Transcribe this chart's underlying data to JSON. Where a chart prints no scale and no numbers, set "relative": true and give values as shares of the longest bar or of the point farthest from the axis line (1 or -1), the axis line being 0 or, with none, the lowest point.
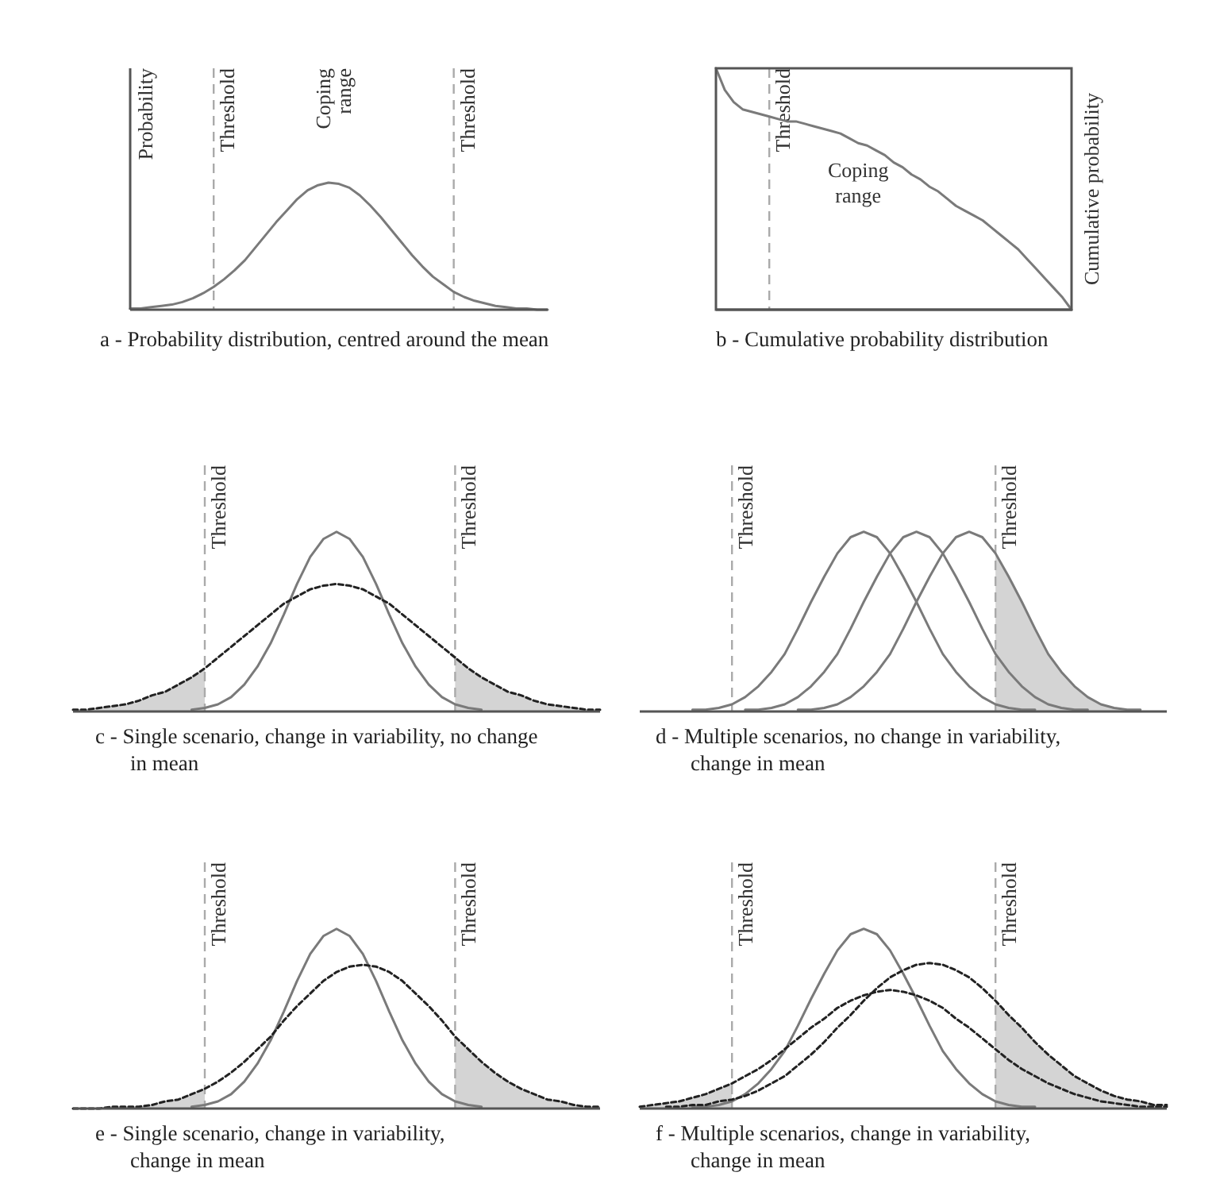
{
  "chart_data": [
    {
      "type": "line",
      "title": "a - Probability distribution, centred around the mean",
      "ylabel": "Probability",
      "annotations": [
        "Coping\nrange"
      ],
      "relative": true,
      "categories": [
        null,
        null,
        null,
        null,
        null,
        null,
        null,
        null,
        null,
        null,
        null,
        null,
        null,
        null,
        null,
        null,
        null,
        null,
        null,
        null,
        null,
        null,
        null,
        null,
        null,
        null,
        null,
        null,
        null,
        null,
        null,
        null,
        null,
        null,
        null,
        null,
        null,
        null,
        null,
        null,
        null
      ],
      "ref_lines": [
        {
          "axis": "x",
          "label": "Threshold",
          "color": "#aaaaaa",
          "line_style": "dashed"
        },
        {
          "axis": "x",
          "label": "Threshold",
          "color": "#aaaaaa",
          "line_style": "dashed"
        }
      ],
      "series": [
        {
          "type": "line",
          "color": "#7a7a7a",
          "line_style": "solid",
          "values": [
            0.01,
            0.01,
            0.02,
            0.03,
            0.04,
            0.06,
            0.09,
            0.13,
            0.18,
            0.24,
            0.31,
            0.39,
            0.49,
            0.59,
            0.69,
            0.78,
            0.87,
            0.94,
            0.98,
            1,
            0.99,
            0.96,
            0.9,
            0.82,
            0.73,
            0.63,
            0.53,
            0.43,
            0.34,
            0.26,
            0.2,
            0.14,
            0.1,
            0.07,
            0.05,
            0.03,
            0.02,
            0.01,
            0.01,
            0,
            0
          ]
        }
      ]
    },
    {
      "type": "line",
      "title": "b - Cumulative probability distribution",
      "y2label": "Cumulative probability",
      "annotations": [
        "Coping\nrange"
      ],
      "relative": true,
      "categories": [
        null,
        null,
        null,
        null,
        null,
        null,
        null,
        null,
        null,
        null,
        null,
        null,
        null,
        null,
        null,
        null,
        null,
        null,
        null,
        null,
        null,
        null,
        null,
        null,
        null,
        null,
        null,
        null,
        null,
        null,
        null,
        null,
        null,
        null,
        null,
        null,
        null,
        null,
        null,
        null,
        null
      ],
      "ref_lines": [
        {
          "axis": "x",
          "label": "Threshold",
          "color": "#aaaaaa",
          "line_style": "dashed"
        }
      ],
      "series": [
        {
          "type": "line",
          "color": "#7a7a7a",
          "line_style": "solid",
          "values": [
            1,
            0.91,
            0.86,
            0.83,
            0.82,
            0.81,
            0.8,
            0.79,
            0.78,
            0.78,
            0.77,
            0.76,
            0.75,
            0.74,
            0.73,
            0.71,
            0.69,
            0.68,
            0.66,
            0.64,
            0.61,
            0.59,
            0.56,
            0.54,
            0.51,
            0.49,
            0.46,
            0.43,
            0.41,
            0.39,
            0.37,
            0.34,
            0.31,
            0.28,
            0.25,
            0.21,
            0.17,
            0.13,
            0.09,
            0.05,
            0
          ]
        }
      ]
    },
    {
      "type": "line",
      "title": "c - Single scenario, change in variability, no change\nin mean",
      "relative": true,
      "categories": [
        null,
        null,
        null,
        null,
        null,
        null,
        null,
        null,
        null,
        null,
        null,
        null,
        null,
        null,
        null,
        null,
        null,
        null,
        null,
        null,
        null,
        null,
        null,
        null,
        null,
        null,
        null,
        null,
        null,
        null,
        null,
        null,
        null,
        null,
        null,
        null,
        null,
        null,
        null,
        null,
        null
      ],
      "ref_lines": [
        {
          "axis": "x",
          "label": "Threshold",
          "color": "#aaaaaa",
          "line_style": "dashed"
        },
        {
          "axis": "x",
          "label": "Threshold",
          "color": "#aaaaaa",
          "line_style": "dashed"
        }
      ],
      "series": [
        {
          "type": "area",
          "color": "#d4d4d4",
          "values": [
            0.01,
            0.01,
            0.02,
            0.03,
            0.04,
            0.06,
            0.09,
            0.11,
            0.15,
            0.19,
            0.24,
            null,
            null,
            null,
            null,
            null,
            null,
            null,
            null,
            null,
            null,
            null,
            null,
            null,
            null,
            null,
            null,
            null,
            null,
            null,
            null,
            null,
            null,
            null,
            null,
            null,
            null,
            null,
            null,
            null,
            null
          ]
        },
        {
          "type": "area",
          "color": "#d4d4d4",
          "values": [
            null,
            null,
            null,
            null,
            null,
            null,
            null,
            null,
            null,
            null,
            null,
            null,
            null,
            null,
            null,
            null,
            null,
            null,
            null,
            null,
            null,
            null,
            null,
            null,
            null,
            null,
            null,
            null,
            null,
            0.3,
            0.24,
            0.19,
            0.15,
            0.11,
            0.09,
            0.06,
            0.04,
            0.03,
            0.02,
            0.01,
            0.01
          ]
        },
        {
          "type": "line",
          "color": "#7a7a7a",
          "line_style": "solid",
          "values": [
            null,
            null,
            null,
            null,
            null,
            null,
            null,
            null,
            null,
            0.01,
            0.02,
            0.04,
            0.08,
            0.15,
            0.25,
            0.38,
            0.54,
            0.71,
            0.86,
            0.96,
            1,
            0.96,
            0.86,
            0.71,
            0.54,
            0.38,
            0.25,
            0.15,
            0.08,
            0.04,
            0.02,
            0.01,
            null,
            null,
            null,
            null,
            null,
            null,
            null,
            null,
            null
          ]
        },
        {
          "type": "line",
          "color": "#222222",
          "line_style": "dotted",
          "values": [
            0.01,
            0.01,
            0.02,
            0.03,
            0.04,
            0.06,
            0.09,
            0.11,
            0.15,
            0.19,
            0.24,
            0.3,
            0.36,
            0.42,
            0.48,
            0.54,
            0.6,
            0.64,
            0.68,
            0.7,
            0.71,
            0.7,
            0.68,
            0.64,
            0.6,
            0.54,
            0.48,
            0.42,
            0.36,
            0.3,
            0.24,
            0.19,
            0.15,
            0.11,
            0.09,
            0.06,
            0.04,
            0.03,
            0.02,
            0.01,
            0.01
          ]
        }
      ]
    },
    {
      "type": "line",
      "title": "d - Multiple scenarios, no change in variability,\nchange in mean",
      "relative": true,
      "categories": [
        null,
        null,
        null,
        null,
        null,
        null,
        null,
        null,
        null,
        null,
        null,
        null,
        null,
        null,
        null,
        null,
        null,
        null,
        null,
        null,
        null,
        null,
        null,
        null,
        null,
        null,
        null,
        null,
        null,
        null,
        null,
        null,
        null,
        null,
        null,
        null,
        null,
        null,
        null,
        null,
        null
      ],
      "ref_lines": [
        {
          "axis": "x",
          "label": "Threshold",
          "color": "#aaaaaa",
          "line_style": "dashed"
        },
        {
          "axis": "x",
          "label": "Threshold",
          "color": "#aaaaaa",
          "line_style": "dashed"
        }
      ],
      "series": [
        {
          "type": "area",
          "color": "#d4d4d4",
          "values": [
            null,
            null,
            null,
            null,
            null,
            null,
            null,
            null,
            null,
            null,
            null,
            null,
            null,
            null,
            null,
            null,
            null,
            null,
            null,
            null,
            null,
            null,
            null,
            null,
            null,
            null,
            null,
            0.88,
            0.75,
            0.61,
            0.46,
            0.32,
            0.22,
            0.14,
            0.08,
            0.04,
            0.02,
            0.01,
            0.01,
            null,
            null
          ]
        },
        {
          "type": "line",
          "color": "#7a7a7a",
          "line_style": "solid",
          "values": [
            null,
            null,
            null,
            null,
            0.01,
            0.01,
            0.02,
            0.04,
            0.08,
            0.14,
            0.22,
            0.32,
            0.46,
            0.61,
            0.75,
            0.88,
            0.97,
            1,
            0.97,
            0.88,
            0.75,
            0.61,
            0.46,
            0.32,
            0.22,
            0.14,
            0.08,
            0.04,
            0.02,
            0.01,
            0.01,
            null,
            null,
            null,
            null,
            null,
            null,
            null,
            null,
            null,
            null
          ]
        },
        {
          "type": "line",
          "color": "#7a7a7a",
          "line_style": "solid",
          "values": [
            null,
            null,
            null,
            null,
            null,
            null,
            null,
            null,
            0.01,
            0.01,
            0.02,
            0.04,
            0.08,
            0.14,
            0.22,
            0.32,
            0.46,
            0.61,
            0.75,
            0.88,
            0.97,
            1,
            0.97,
            0.88,
            0.75,
            0.61,
            0.46,
            0.32,
            0.22,
            0.14,
            0.08,
            0.04,
            0.02,
            0.01,
            0.01,
            null,
            null,
            null,
            null,
            null,
            null
          ]
        },
        {
          "type": "line",
          "color": "#7a7a7a",
          "line_style": "solid",
          "values": [
            null,
            null,
            null,
            null,
            null,
            null,
            null,
            null,
            null,
            null,
            null,
            null,
            0.01,
            0.01,
            0.02,
            0.04,
            0.08,
            0.14,
            0.22,
            0.32,
            0.46,
            0.61,
            0.75,
            0.88,
            0.97,
            1,
            0.97,
            0.88,
            0.75,
            0.61,
            0.46,
            0.32,
            0.22,
            0.14,
            0.08,
            0.04,
            0.02,
            0.01,
            0.01,
            null,
            null
          ]
        }
      ]
    },
    {
      "type": "line",
      "title": "e - Single scenario, change in variability,\nchange in mean",
      "relative": true,
      "categories": [
        null,
        null,
        null,
        null,
        null,
        null,
        null,
        null,
        null,
        null,
        null,
        null,
        null,
        null,
        null,
        null,
        null,
        null,
        null,
        null,
        null,
        null,
        null,
        null,
        null,
        null,
        null,
        null,
        null,
        null,
        null,
        null,
        null,
        null,
        null,
        null,
        null,
        null,
        null,
        null,
        null
      ],
      "ref_lines": [
        {
          "axis": "x",
          "label": "Threshold",
          "color": "#aaaaaa",
          "line_style": "dashed"
        },
        {
          "axis": "x",
          "label": "Threshold",
          "color": "#aaaaaa",
          "line_style": "dashed"
        }
      ],
      "series": [
        {
          "type": "area",
          "color": "#d4d4d4",
          "values": [
            0,
            0,
            0,
            0.01,
            0.01,
            0.01,
            0.02,
            0.04,
            0.05,
            0.08,
            0.11,
            null,
            null,
            null,
            null,
            null,
            null,
            null,
            null,
            null,
            null,
            null,
            null,
            null,
            null,
            null,
            null,
            null,
            null,
            null,
            null,
            null,
            null,
            null,
            null,
            null,
            null,
            null,
            null,
            null,
            null
          ]
        },
        {
          "type": "area",
          "color": "#d4d4d4",
          "values": [
            null,
            null,
            null,
            null,
            null,
            null,
            null,
            null,
            null,
            null,
            null,
            null,
            null,
            null,
            null,
            null,
            null,
            null,
            null,
            null,
            null,
            null,
            null,
            null,
            null,
            null,
            null,
            null,
            null,
            0.4,
            0.33,
            0.26,
            0.2,
            0.15,
            0.11,
            0.08,
            0.05,
            0.04,
            0.02,
            0.01,
            0.01
          ]
        },
        {
          "type": "line",
          "color": "#7a7a7a",
          "line_style": "solid",
          "values": [
            null,
            null,
            null,
            null,
            null,
            null,
            null,
            null,
            null,
            0.01,
            0.02,
            0.04,
            0.08,
            0.15,
            0.25,
            0.38,
            0.54,
            0.71,
            0.86,
            0.96,
            1,
            0.96,
            0.86,
            0.71,
            0.54,
            0.38,
            0.25,
            0.15,
            0.08,
            0.04,
            0.02,
            0.01,
            null,
            null,
            null,
            null,
            null,
            null,
            null,
            null,
            null
          ]
        },
        {
          "type": "line",
          "color": "#222222",
          "line_style": "dotted",
          "values": [
            0,
            0,
            0,
            0.01,
            0.01,
            0.01,
            0.02,
            0.04,
            0.05,
            0.08,
            0.11,
            0.15,
            0.2,
            0.26,
            0.33,
            0.4,
            0.49,
            0.57,
            0.64,
            0.71,
            0.76,
            0.79,
            0.8,
            0.79,
            0.76,
            0.71,
            0.64,
            0.57,
            0.49,
            0.4,
            0.33,
            0.26,
            0.2,
            0.15,
            0.11,
            0.08,
            0.05,
            0.04,
            0.02,
            0.01,
            0.01
          ]
        }
      ]
    },
    {
      "type": "line",
      "title": "f - Multiple scenarios, change in variability,\nchange in mean",
      "relative": true,
      "categories": [
        null,
        null,
        null,
        null,
        null,
        null,
        null,
        null,
        null,
        null,
        null,
        null,
        null,
        null,
        null,
        null,
        null,
        null,
        null,
        null,
        null,
        null,
        null,
        null,
        null,
        null,
        null,
        null,
        null,
        null,
        null,
        null,
        null,
        null,
        null,
        null,
        null,
        null,
        null,
        null,
        null
      ],
      "ref_lines": [
        {
          "axis": "x",
          "label": "Threshold",
          "color": "#aaaaaa",
          "line_style": "dashed"
        },
        {
          "axis": "x",
          "label": "Threshold",
          "color": "#aaaaaa",
          "line_style": "dashed"
        }
      ],
      "series": [
        {
          "type": "area",
          "color": "#d4d4d4",
          "values": [
            0.01,
            0.02,
            0.03,
            0.04,
            0.06,
            0.08,
            0.11,
            0.14,
            null,
            null,
            null,
            null,
            null,
            null,
            null,
            null,
            null,
            null,
            null,
            null,
            null,
            null,
            null,
            null,
            null,
            null,
            null,
            null,
            null,
            null,
            null,
            null,
            null,
            null,
            null,
            null,
            null,
            null,
            null,
            null,
            null
          ]
        },
        {
          "type": "area",
          "color": "#d4d4d4",
          "values": [
            null,
            null,
            null,
            null,
            null,
            null,
            null,
            null,
            null,
            null,
            null,
            null,
            null,
            null,
            null,
            null,
            null,
            null,
            null,
            null,
            null,
            null,
            null,
            null,
            null,
            null,
            null,
            0.6,
            0.52,
            0.45,
            0.37,
            0.3,
            0.24,
            0.18,
            0.14,
            0.1,
            0.07,
            0.05,
            0.04,
            0.02,
            0.02
          ]
        },
        {
          "type": "line",
          "color": "#7a7a7a",
          "line_style": "solid",
          "values": [
            null,
            null,
            null,
            null,
            0.01,
            0.01,
            0.02,
            0.04,
            0.08,
            0.14,
            0.22,
            0.32,
            0.46,
            0.61,
            0.75,
            0.88,
            0.97,
            1,
            0.97,
            0.88,
            0.75,
            0.61,
            0.46,
            0.32,
            0.22,
            0.14,
            0.08,
            0.04,
            0.02,
            0.01,
            0.01,
            null,
            null,
            null,
            null,
            null,
            null,
            null,
            null,
            null,
            null
          ]
        },
        {
          "type": "line",
          "color": "#222222",
          "line_style": "dotted",
          "values": [
            0.01,
            0.02,
            0.03,
            0.04,
            0.06,
            0.08,
            0.11,
            0.14,
            0.18,
            0.22,
            0.27,
            0.33,
            0.39,
            0.45,
            0.5,
            0.56,
            0.6,
            0.63,
            0.65,
            0.66,
            0.65,
            0.63,
            0.6,
            0.56,
            0.5,
            0.45,
            0.39,
            0.33,
            0.27,
            0.22,
            0.18,
            0.14,
            0.11,
            0.08,
            0.06,
            0.04,
            0.03,
            0.02,
            0.01,
            0.01,
            0.01
          ]
        },
        {
          "type": "line",
          "color": "#222222",
          "line_style": "dotted",
          "values": [
            null,
            null,
            0.01,
            0.01,
            0.02,
            0.02,
            0.04,
            0.05,
            0.07,
            0.1,
            0.14,
            0.18,
            0.24,
            0.3,
            0.37,
            0.45,
            0.52,
            0.6,
            0.67,
            0.73,
            0.77,
            0.8,
            0.81,
            0.8,
            0.77,
            0.73,
            0.67,
            0.6,
            0.52,
            0.45,
            0.37,
            0.3,
            0.24,
            0.18,
            0.14,
            0.1,
            0.07,
            0.05,
            0.04,
            0.02,
            0.02
          ]
        }
      ]
    }
  ]
}
